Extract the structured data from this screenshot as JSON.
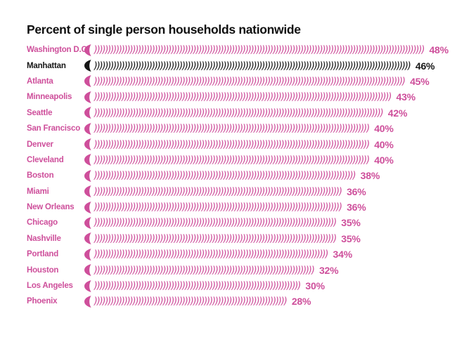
{
  "chart_data": {
    "type": "bar",
    "title": "Percent of single person households nationwide",
    "orientation": "horizontal",
    "bar_style": "repeated-paren-glyph",
    "bar_glyph": ")",
    "glyphs_per_percent": 2.5,
    "value_suffix": "%",
    "xlim": [
      0,
      50
    ],
    "grid": false,
    "legend": false,
    "categories": [
      "Washington D.C.",
      "Manhattan",
      "Atlanta",
      "Minneapolis",
      "Seattle",
      "San Francisco",
      "Denver",
      "Cleveland",
      "Boston",
      "Miami",
      "New Orleans",
      "Chicago",
      "Nashville",
      "Portland",
      "Houston",
      "Los Angeles",
      "Phoenix"
    ],
    "values": [
      48,
      46,
      45,
      43,
      42,
      40,
      40,
      40,
      38,
      36,
      36,
      35,
      35,
      34,
      32,
      30,
      28
    ],
    "value_labels": [
      "48%",
      "46%",
      "45%",
      "43%",
      "42%",
      "40%",
      "40%",
      "40%",
      "38%",
      "36%",
      "36%",
      "35%",
      "35%",
      "34%",
      "32%",
      "30%",
      "28%"
    ],
    "highlight_category": "Manhattan",
    "colors": {
      "primary": "#ce4f9b",
      "highlight": "#161616",
      "title": "#0f0f0f",
      "background": "#ffffff"
    }
  }
}
